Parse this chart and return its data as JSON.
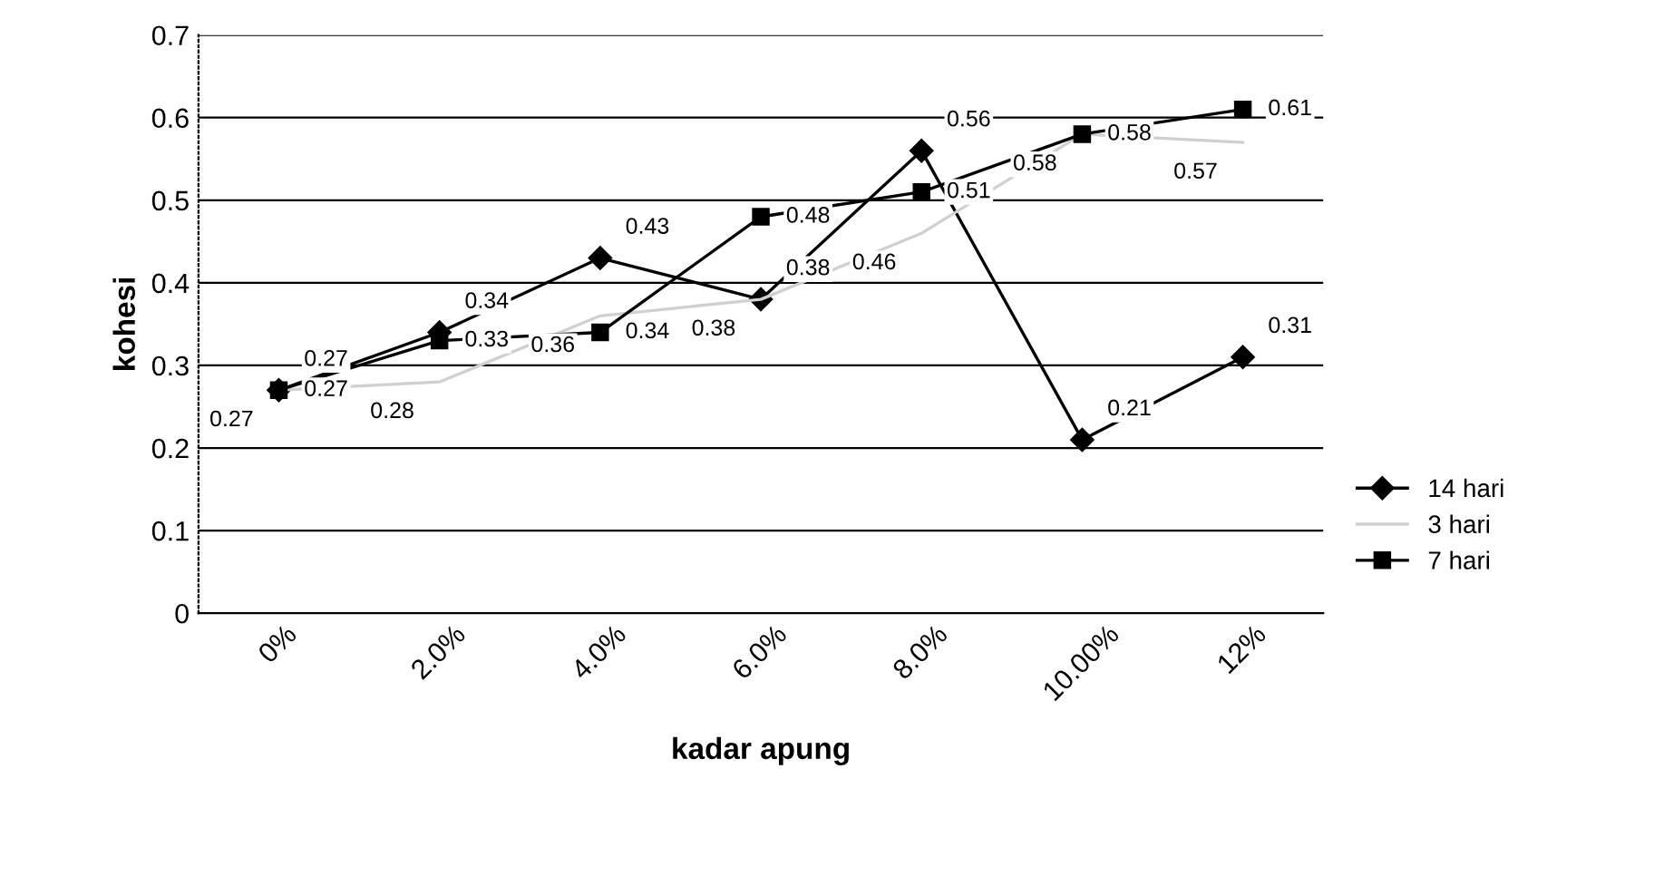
{
  "chart_data": {
    "type": "line",
    "xlabel": "kadar apung",
    "ylabel": "kohesi",
    "categories": [
      "0%",
      "2.0%",
      "4.0%",
      "6.0%",
      "8.0%",
      "10.00%",
      "12%"
    ],
    "series": [
      {
        "name": "14 hari",
        "color": "#000000",
        "marker": "diamond",
        "line_style": "solid",
        "values": [
          0.27,
          0.34,
          0.43,
          0.38,
          0.56,
          0.21,
          0.31
        ]
      },
      {
        "name": "3 hari",
        "color": "#d0d0d0",
        "marker": "none",
        "line_style": "solid",
        "values": [
          0.27,
          0.28,
          0.36,
          0.38,
          0.46,
          0.58,
          0.57
        ]
      },
      {
        "name": "7 hari",
        "color": "#000000",
        "marker": "square",
        "line_style": "solid",
        "values": [
          0.27,
          0.33,
          0.34,
          0.48,
          0.51,
          0.58,
          0.61
        ]
      }
    ],
    "ylim": [
      0,
      0.7
    ],
    "yticks": [
      0,
      0.1,
      0.2,
      0.3,
      0.4,
      0.5,
      0.6,
      0.7
    ],
    "grid": "y",
    "legend": "right",
    "data_labels": true
  }
}
